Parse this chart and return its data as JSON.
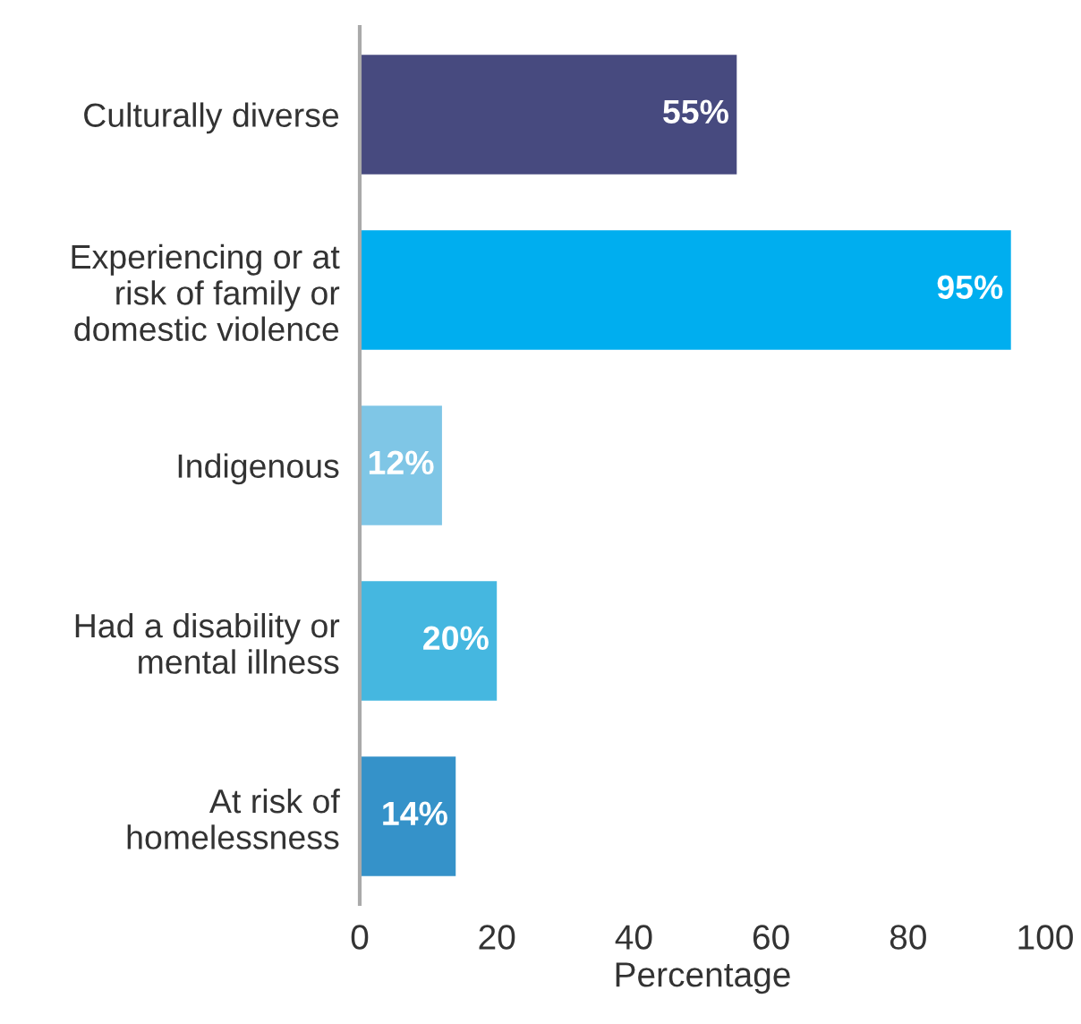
{
  "chart_data": {
    "type": "bar",
    "orientation": "horizontal",
    "xlabel": "Percentage",
    "categories": [
      "Culturally diverse",
      "Experiencing or at\nrisk of family or\ndomestic violence",
      "Indigenous",
      "Had a disability or\nmental illness",
      "At risk of\nhomelessness"
    ],
    "values": [
      55,
      95,
      12,
      20,
      14
    ],
    "colors": [
      "#474a7f",
      "#00aeef",
      "#7fc6e6",
      "#45b7e0",
      "#3592c9"
    ],
    "value_labels": [
      "55%",
      "95%",
      "12%",
      "20%",
      "14%"
    ],
    "xlim": [
      0,
      100
    ],
    "xticks": [
      0,
      20,
      40,
      60,
      80,
      100
    ],
    "grid": false,
    "legend": false
  }
}
